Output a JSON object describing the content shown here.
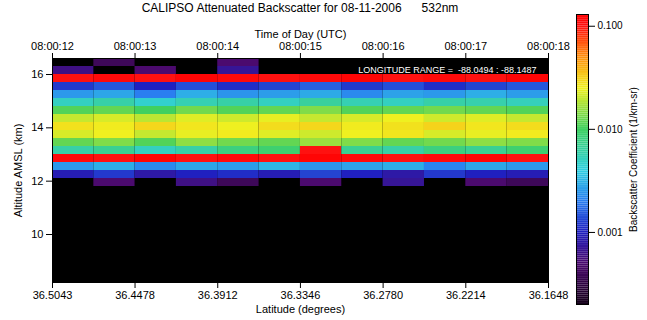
{
  "chart_data": {
    "type": "heatmap",
    "title": "CALIPSO Attenuated Backscatter for 08-11-2006      532nm",
    "annotation": "LONGITUDE RANGE =  -88.0494 : -88.1487",
    "xlabel": "Latitude (degrees)",
    "x2label": "Time of Day (UTC)",
    "ylabel": "Altitude AMSL (km)",
    "colorbar_label": "Backscatter Coefficient (1/km-sr)",
    "xlim": [
      36.5043,
      36.1648
    ],
    "xticks": [
      36.5043,
      36.4478,
      36.3912,
      36.3346,
      {
        "value": 36.278,
        "label": "36.2780"
      },
      36.2214,
      36.1648
    ],
    "x2ticks": [
      {
        "value": 36.5043,
        "label": "08:00:12"
      },
      {
        "value": 36.4478,
        "label": "08:00:13"
      },
      {
        "value": 36.3912,
        "label": "08:00:14"
      },
      {
        "value": 36.3346,
        "label": "08:00:15"
      },
      {
        "value": 36.278,
        "label": "08:00:16"
      },
      {
        "value": 36.2214,
        "label": "08:00:17"
      },
      {
        "value": 36.1648,
        "label": "08:00:18"
      }
    ],
    "ylim": [
      8.2,
      16.6
    ],
    "yticks": [
      10,
      12,
      14,
      16
    ],
    "x_bins": [
      36.5043,
      36.476,
      36.4478,
      36.4195,
      36.3912,
      36.3629,
      36.3346,
      36.3063,
      36.278,
      36.2497,
      36.2214,
      36.1931,
      36.1648
    ],
    "y_bins": [
      11.8,
      12.1,
      12.4,
      12.7,
      13.0,
      13.3,
      13.6,
      13.9,
      14.2,
      14.5,
      14.8,
      15.1,
      15.4,
      15.7,
      16.0,
      16.3,
      16.6
    ],
    "cells": [
      [
        null,
        0.0005,
        null,
        0.0006,
        0.0004,
        null,
        0.0005,
        null,
        0.0007,
        null,
        0.0005,
        0.0004
      ],
      [
        0.0009,
        0.0012,
        0.0008,
        0.001,
        0.0011,
        0.0009,
        0.0013,
        0.001,
        0.0008,
        0.0012,
        0.001,
        0.0009
      ],
      [
        0.0025,
        0.003,
        0.0022,
        0.0028,
        0.0026,
        0.0032,
        0.0024,
        0.0027,
        0.003,
        0.0021,
        0.0028,
        0.0025
      ],
      [
        0.11,
        0.1,
        0.12,
        0.1,
        0.11,
        0.1,
        0.12,
        0.11,
        0.1,
        0.11,
        0.12,
        0.1
      ],
      [
        0.006,
        0.007,
        0.005,
        0.006,
        0.008,
        0.009,
        0.1,
        0.007,
        0.006,
        0.008,
        0.007,
        0.009
      ],
      [
        0.012,
        0.014,
        0.011,
        0.015,
        0.013,
        0.012,
        0.016,
        0.014,
        0.012,
        0.013,
        0.015,
        0.014
      ],
      [
        0.022,
        0.025,
        0.02,
        0.024,
        0.026,
        0.023,
        0.021,
        0.025,
        0.027,
        0.022,
        0.024,
        0.026
      ],
      [
        0.028,
        0.026,
        0.03,
        0.027,
        0.025,
        0.029,
        0.03,
        0.026,
        0.028,
        0.031,
        0.027,
        0.029
      ],
      [
        0.02,
        0.022,
        0.019,
        0.023,
        0.021,
        0.024,
        0.02,
        0.022,
        0.025,
        0.021,
        0.023,
        0.02
      ],
      [
        0.011,
        0.012,
        0.01,
        0.013,
        0.011,
        0.012,
        0.014,
        0.011,
        0.012,
        0.013,
        0.012,
        0.011
      ],
      [
        0.005,
        0.006,
        0.0045,
        0.0055,
        0.006,
        0.005,
        0.0065,
        0.0055,
        0.005,
        0.006,
        0.0058,
        0.0052
      ],
      [
        0.0025,
        0.0028,
        0.002,
        0.003,
        0.0024,
        0.0026,
        0.0029,
        0.0022,
        0.0027,
        0.0025,
        0.003,
        0.0026
      ],
      [
        0.0012,
        0.0015,
        0.001,
        0.0014,
        0.0011,
        0.0013,
        0.0016,
        0.0012,
        0.0014,
        0.0011,
        0.0013,
        0.0015
      ],
      [
        0.1,
        0.11,
        0.1,
        0.12,
        0.11,
        0.1,
        0.11,
        0.12,
        0.1,
        0.11,
        0.1,
        0.12
      ],
      [
        0.0006,
        null,
        0.0005,
        null,
        0.0007,
        null,
        null,
        null,
        null,
        null,
        null,
        null
      ],
      [
        null,
        0.0004,
        null,
        null,
        0.0005,
        null,
        null,
        null,
        null,
        null,
        null,
        null
      ]
    ],
    "colorbar_lim": [
      0.0002,
      0.13
    ],
    "colorbar_ticks": [
      0.001,
      {
        "value": 0.01,
        "label": "0.010"
      },
      {
        "value": 0.1,
        "label": "0.100"
      }
    ]
  }
}
